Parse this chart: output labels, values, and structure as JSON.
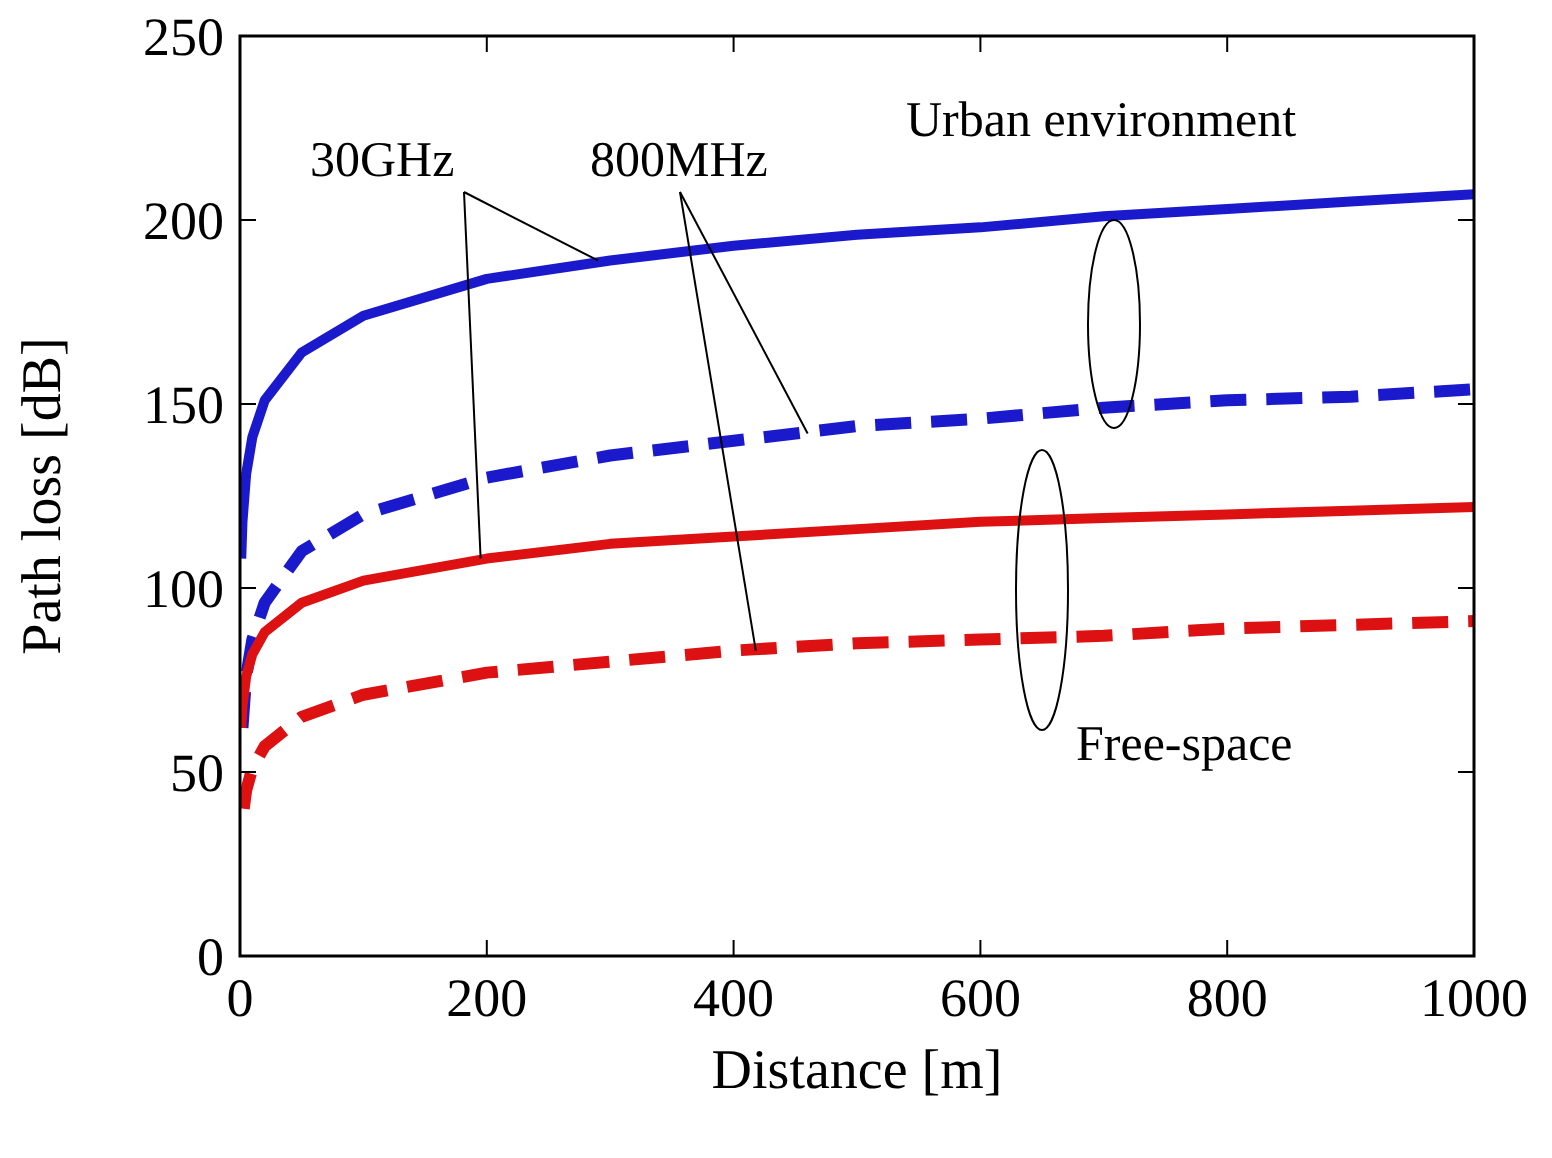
{
  "chart_data": {
    "type": "line",
    "xlabel": "Distance [m]",
    "ylabel": "Path loss [dB]",
    "xlim": [
      0,
      1000
    ],
    "xticks": [
      0,
      200,
      400,
      600,
      800,
      1000
    ],
    "ylim": [
      0,
      250
    ],
    "yticks": [
      0,
      50,
      100,
      150,
      200,
      250
    ],
    "grid": false,
    "annotations": [
      {
        "text": "30GHz",
        "x": 290,
        "y": 189
      },
      {
        "text": "800MHz",
        "x": 460,
        "y": 142
      },
      "Urban environment",
      "Free-space"
    ],
    "series": [
      {
        "color": "#1a1acc",
        "line_style": "solid",
        "x": [
          1,
          2,
          5,
          10,
          20,
          50,
          100,
          200,
          300,
          400,
          500,
          600,
          700,
          800,
          900,
          1000
        ],
        "values": [
          108,
          118,
          131,
          141,
          151,
          164,
          174,
          184,
          189,
          193,
          196,
          198,
          201,
          203,
          205,
          207
        ]
      },
      {
        "color": "#1a1acc",
        "line_style": "dashed",
        "x": [
          2,
          5,
          10,
          20,
          50,
          100,
          200,
          300,
          400,
          500,
          600,
          700,
          800,
          900,
          1000
        ],
        "values": [
          62,
          76,
          86,
          96,
          110,
          120,
          130,
          136,
          140,
          144,
          146,
          149,
          151,
          152,
          154
        ]
      },
      {
        "color": "#dd1111",
        "line_style": "solid",
        "x": [
          1,
          2,
          5,
          10,
          20,
          50,
          100,
          200,
          300,
          400,
          500,
          600,
          700,
          800,
          900,
          1000
        ],
        "values": [
          62,
          68,
          76,
          82,
          88,
          96,
          102,
          108,
          112,
          114,
          116,
          118,
          119,
          120,
          121,
          122
        ]
      },
      {
        "color": "#dd1111",
        "line_style": "dashed",
        "x": [
          3,
          5,
          10,
          20,
          50,
          100,
          200,
          300,
          400,
          500,
          600,
          700,
          800,
          900,
          1000
        ],
        "values": [
          40,
          45,
          51,
          57,
          65,
          71,
          77,
          80,
          83,
          85,
          86,
          87,
          89,
          90,
          91
        ]
      }
    ]
  }
}
